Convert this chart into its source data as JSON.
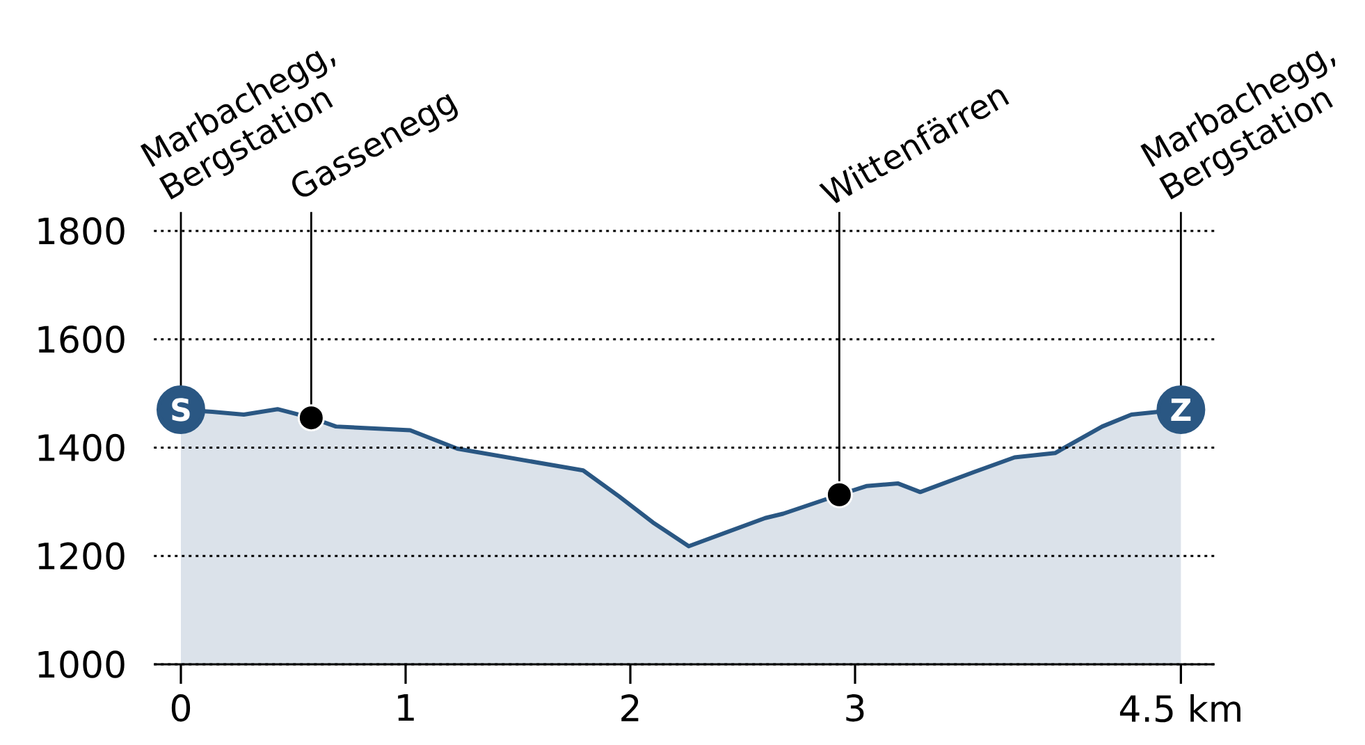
{
  "chart_data": {
    "type": "area",
    "x": [
      0,
      0.14,
      0.28,
      0.43,
      0.58,
      0.69,
      1.02,
      1.23,
      1.79,
      1.95,
      2.1,
      2.26,
      2.6,
      2.68,
      2.93,
      3.05,
      3.19,
      3.29,
      3.53,
      3.71,
      3.89,
      4.1,
      4.23,
      4.35,
      4.45
    ],
    "series": [
      {
        "color": "#2a5783",
        "values": [
          1470,
          1466,
          1461,
          1471,
          1455,
          1439,
          1432,
          1398,
          1358,
          1310,
          1262,
          1218,
          1270,
          1278,
          1313,
          1329,
          1334,
          1318,
          1355,
          1382,
          1390,
          1439,
          1461,
          1466,
          1470
        ]
      },
      {
        "type": "scatter",
        "marker": "circle",
        "color": "#2a5783",
        "x": [
          0,
          4.45
        ],
        "values": [
          1470,
          1470
        ]
      }
    ],
    "xlim": [
      -0.12,
      4.6
    ],
    "ylim": [
      1000,
      1800
    ],
    "xticks": [
      0,
      1,
      2,
      3,
      {
        "value": 4.45,
        "label": "4.5 km"
      }
    ],
    "yticks": [
      1000,
      1200,
      1400,
      1600,
      1800
    ],
    "grid": "y",
    "annotations": [
      {
        "text": "Marbachegg, Bergstation",
        "x": 0,
        "y": 1470
      },
      {
        "text": "Gassenegg",
        "x": 0.58,
        "y": 1455
      },
      {
        "text": "Wittenfärren",
        "x": 2.93,
        "y": 1313
      },
      {
        "text": "Marbachegg, Bergstation",
        "x": 4.45,
        "y": 1470
      },
      "S",
      "Z"
    ]
  }
}
